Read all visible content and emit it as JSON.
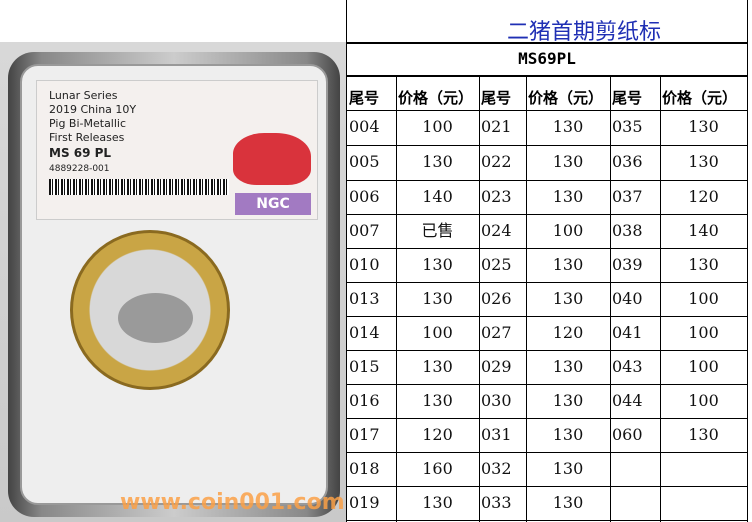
{
  "photo": {
    "label_lines": [
      "Lunar Series",
      "2019 China 10Y",
      "Pig Bi-Metallic",
      "First Releases",
      "MS 69 PL",
      "4889228-001"
    ],
    "grader_logo": "NGC"
  },
  "sheet": {
    "title": "二猪首期剪纸标",
    "subtitle": "MS69PL",
    "headers": [
      "尾号",
      "价格（元）",
      "尾号",
      "价格（元）",
      "尾号",
      "价格（元）"
    ],
    "rows": [
      [
        "004",
        "100",
        "021",
        "130",
        "035",
        "130"
      ],
      [
        "005",
        "130",
        "022",
        "130",
        "036",
        "130"
      ],
      [
        "006",
        "140",
        "023",
        "130",
        "037",
        "120"
      ],
      [
        "007",
        "已售",
        "024",
        "100",
        "038",
        "140"
      ],
      [
        "010",
        "130",
        "025",
        "130",
        "039",
        "130"
      ],
      [
        "013",
        "130",
        "026",
        "130",
        "040",
        "100"
      ],
      [
        "014",
        "100",
        "027",
        "120",
        "041",
        "100"
      ],
      [
        "015",
        "130",
        "029",
        "130",
        "043",
        "100"
      ],
      [
        "016",
        "130",
        "030",
        "130",
        "044",
        "100"
      ],
      [
        "017",
        "120",
        "031",
        "130",
        "060",
        "130"
      ],
      [
        "018",
        "160",
        "032",
        "130",
        "",
        ""
      ],
      [
        "019",
        "130",
        "033",
        "130",
        "",
        ""
      ]
    ]
  },
  "watermark": "www.coin001.com"
}
